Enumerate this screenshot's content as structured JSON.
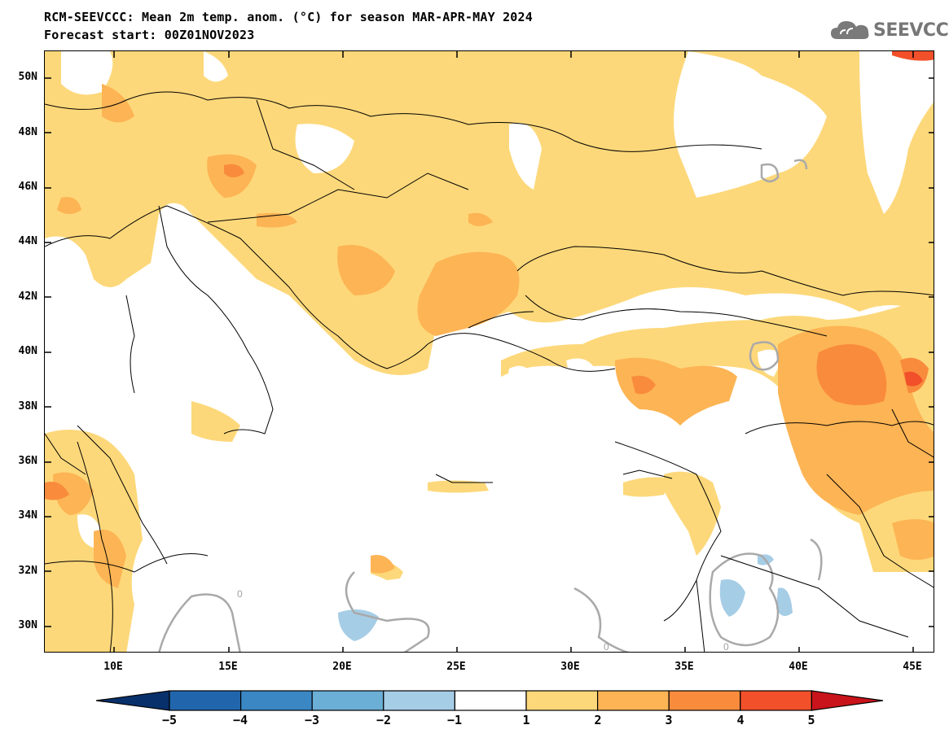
{
  "header": {
    "title_line1": "RCM-SEEVCCC: Mean 2m temp. anom. (°C) for season MAR-APR-MAY 2024",
    "title_line2": "Forecast start: 00Z01NOV2023",
    "logo_text": "SEEVCCC",
    "logo_icon": "cloud-icon"
  },
  "map": {
    "lat_labels": [
      "50N",
      "48N",
      "46N",
      "44N",
      "42N",
      "40N",
      "38N",
      "36N",
      "34N",
      "32N",
      "30N"
    ],
    "lon_labels": [
      "10E",
      "15E",
      "20E",
      "25E",
      "30E",
      "35E",
      "40E",
      "45E"
    ],
    "contour_label": "0"
  },
  "colorbar": {
    "ticks": [
      "−5",
      "−4",
      "−3",
      "−2",
      "−1",
      "1",
      "2",
      "3",
      "4",
      "5"
    ],
    "colors": {
      "lt_m5": "#08306b",
      "m5_m4": "#2166ac",
      "m4_m3": "#3a87c4",
      "m3_m2": "#6baed6",
      "m2_m1": "#a6cde6",
      "m1_1": "#ffffff",
      "1_2": "#fdd87a",
      "2_3": "#fdb454",
      "3_4": "#f98b3d",
      "4_5": "#f2502a",
      "gt_5": "#c8141a"
    }
  }
}
